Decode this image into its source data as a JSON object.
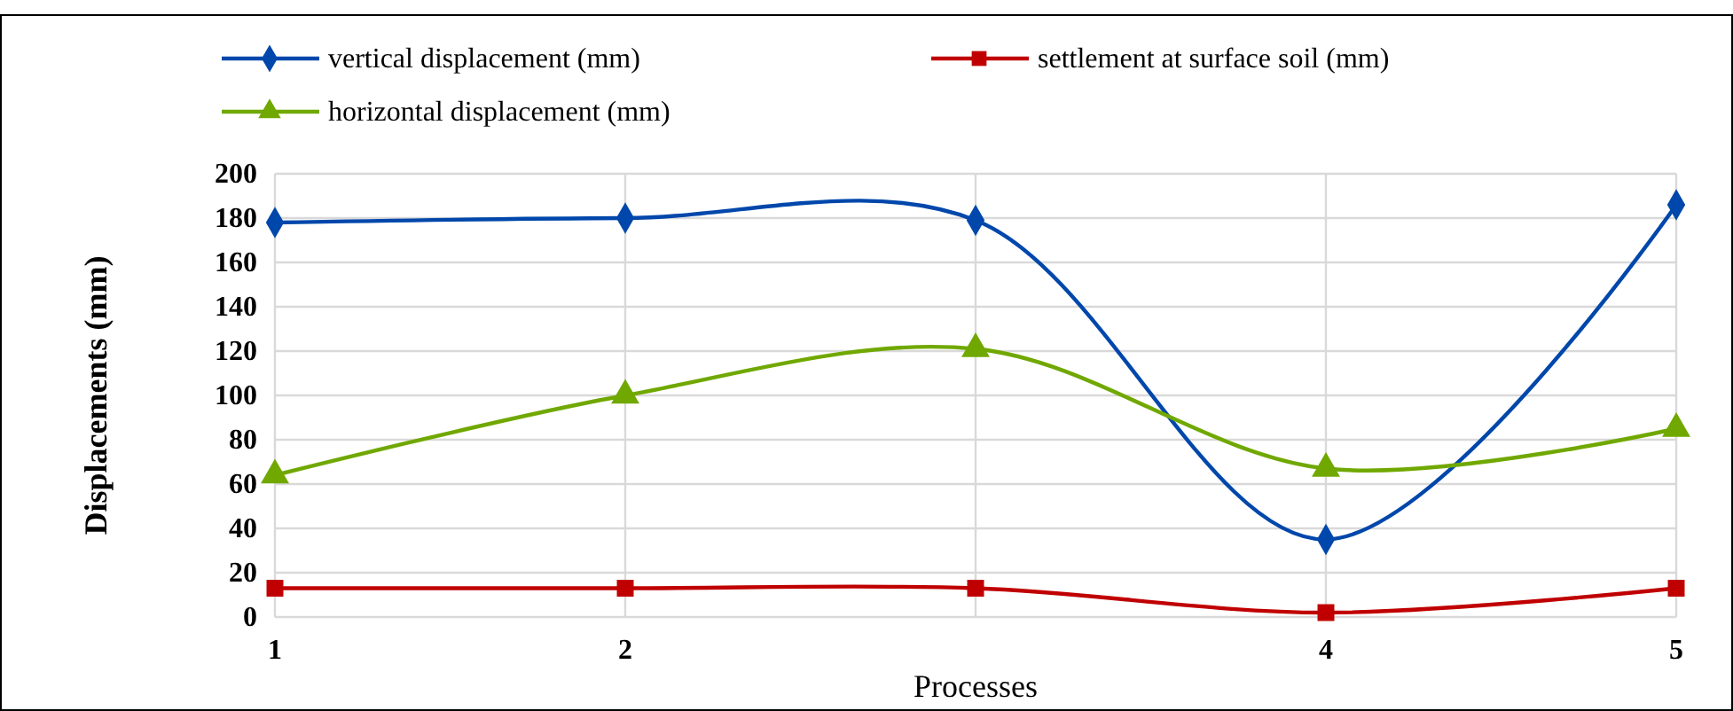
{
  "chart_data": {
    "type": "line",
    "xlabel": "Processes",
    "ylabel": "Displacements  (mm)",
    "categories": [
      "1",
      "2",
      null,
      "4",
      "5"
    ],
    "series": [
      {
        "name": "vertical displacement (mm)",
        "color": "#0047ab",
        "marker": "diamond",
        "values": [
          178,
          180,
          179,
          35,
          186
        ]
      },
      {
        "name": "settlement at surface soil (mm)",
        "color": "#c00000",
        "marker": "square",
        "values": [
          13,
          13,
          13,
          2,
          13
        ]
      },
      {
        "name": "horizontal displacement (mm)",
        "color": "#70a800",
        "marker": "triangle",
        "values": [
          64,
          100,
          121,
          67,
          85
        ]
      }
    ],
    "ylim": [
      0,
      200
    ],
    "yticks": [
      0,
      20,
      40,
      60,
      80,
      100,
      120,
      140,
      160,
      180,
      200
    ],
    "grid": true,
    "legend": "top",
    "line_style": "solid"
  }
}
